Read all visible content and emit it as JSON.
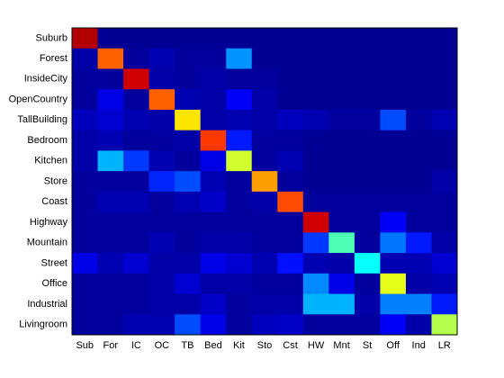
{
  "chart_data": {
    "type": "heatmap",
    "colormap": "jet",
    "vlim": [
      0,
      1
    ],
    "x_categories": [
      "Sub",
      "For",
      "IC",
      "OC",
      "TB",
      "Bed",
      "Kit",
      "Sto",
      "Cst",
      "HW",
      "Mnt",
      "St",
      "Off",
      "Ind",
      "LR"
    ],
    "y_categories": [
      "Suburb",
      "Forest",
      "InsideCity",
      "OpenCountry",
      "TallBuilding",
      "Bedroom",
      "Kitchen",
      "Store",
      "Coast",
      "Highway",
      "Mountain",
      "Street",
      "Office",
      "Industrial",
      "Livingroom"
    ],
    "values": [
      [
        0.95,
        0.02,
        0.02,
        0.02,
        0.02,
        0.02,
        0.02,
        0.02,
        0.02,
        0.02,
        0.02,
        0.02,
        0.02,
        0.02,
        0.02
      ],
      [
        0.04,
        0.78,
        0.03,
        0.05,
        0.03,
        0.03,
        0.27,
        0.02,
        0.02,
        0.02,
        0.02,
        0.02,
        0.02,
        0.02,
        0.02
      ],
      [
        0.03,
        0.03,
        0.92,
        0.04,
        0.03,
        0.04,
        0.03,
        0.03,
        0.02,
        0.02,
        0.02,
        0.02,
        0.02,
        0.02,
        0.02
      ],
      [
        0.03,
        0.1,
        0.03,
        0.78,
        0.05,
        0.04,
        0.12,
        0.04,
        0.02,
        0.02,
        0.02,
        0.02,
        0.02,
        0.02,
        0.02
      ],
      [
        0.06,
        0.08,
        0.05,
        0.04,
        0.65,
        0.04,
        0.05,
        0.04,
        0.06,
        0.05,
        0.03,
        0.03,
        0.2,
        0.03,
        0.05
      ],
      [
        0.04,
        0.05,
        0.03,
        0.03,
        0.04,
        0.82,
        0.15,
        0.03,
        0.03,
        0.02,
        0.02,
        0.02,
        0.02,
        0.02,
        0.02
      ],
      [
        0.04,
        0.3,
        0.18,
        0.05,
        0.03,
        0.1,
        0.58,
        0.03,
        0.05,
        0.02,
        0.02,
        0.02,
        0.02,
        0.02,
        0.02
      ],
      [
        0.03,
        0.03,
        0.03,
        0.16,
        0.2,
        0.05,
        0.03,
        0.72,
        0.03,
        0.02,
        0.02,
        0.02,
        0.02,
        0.02,
        0.04
      ],
      [
        0.03,
        0.05,
        0.05,
        0.03,
        0.05,
        0.07,
        0.03,
        0.04,
        0.8,
        0.03,
        0.03,
        0.03,
        0.03,
        0.03,
        0.03
      ],
      [
        0.03,
        0.03,
        0.03,
        0.03,
        0.03,
        0.03,
        0.03,
        0.03,
        0.03,
        0.92,
        0.03,
        0.03,
        0.12,
        0.03,
        0.03
      ],
      [
        0.03,
        0.03,
        0.03,
        0.05,
        0.03,
        0.04,
        0.04,
        0.03,
        0.03,
        0.18,
        0.45,
        0.03,
        0.24,
        0.15,
        0.04
      ],
      [
        0.1,
        0.05,
        0.08,
        0.04,
        0.04,
        0.1,
        0.08,
        0.05,
        0.14,
        0.05,
        0.04,
        0.38,
        0.05,
        0.05,
        0.08
      ],
      [
        0.03,
        0.03,
        0.03,
        0.04,
        0.08,
        0.04,
        0.04,
        0.03,
        0.03,
        0.26,
        0.1,
        0.03,
        0.6,
        0.04,
        0.05
      ],
      [
        0.03,
        0.03,
        0.03,
        0.04,
        0.04,
        0.07,
        0.03,
        0.04,
        0.04,
        0.3,
        0.3,
        0.04,
        0.25,
        0.25,
        0.15
      ],
      [
        0.03,
        0.03,
        0.05,
        0.05,
        0.2,
        0.1,
        0.03,
        0.06,
        0.07,
        0.03,
        0.03,
        0.03,
        0.12,
        0.04,
        0.55
      ]
    ]
  }
}
